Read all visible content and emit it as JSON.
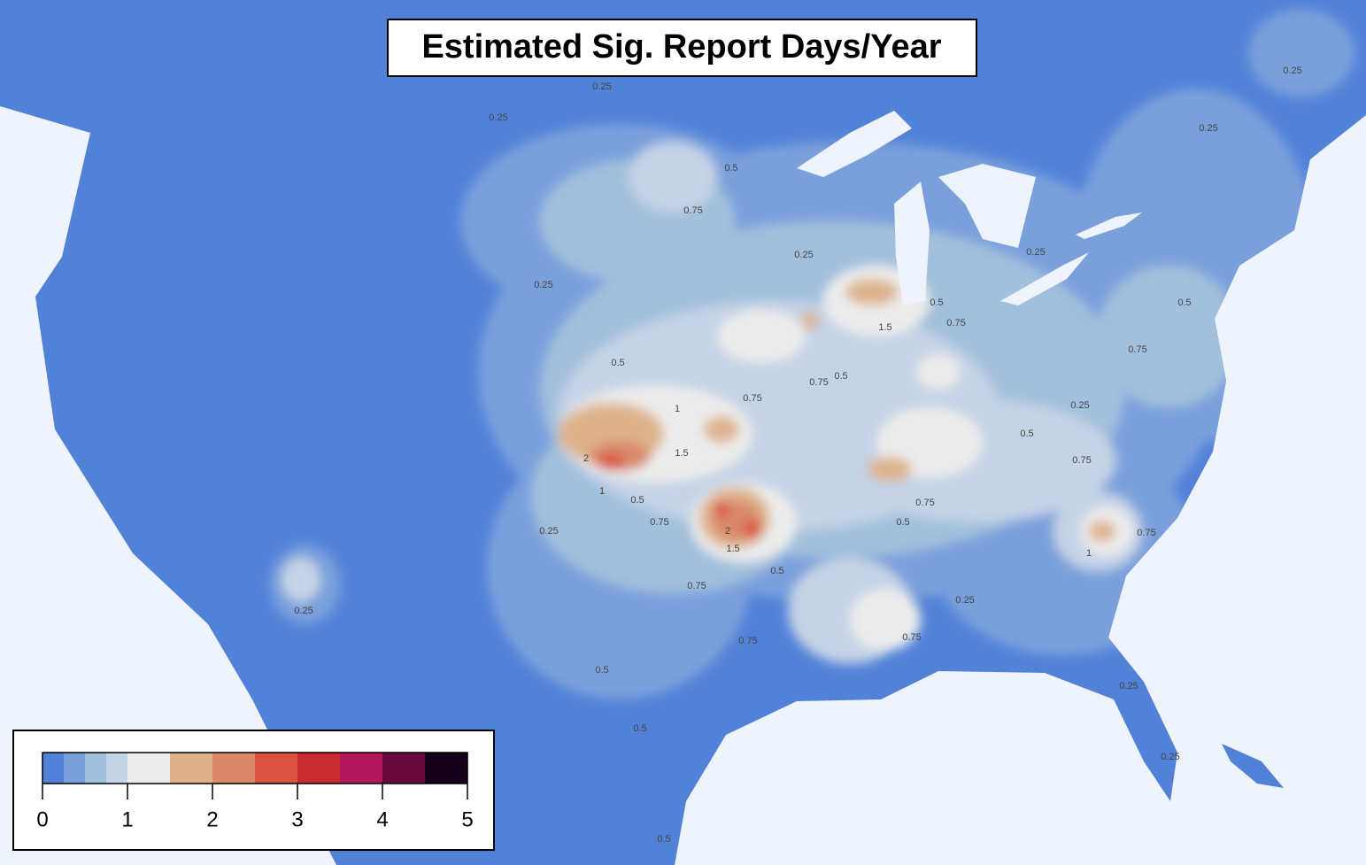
{
  "title": "Estimated Sig. Report Days/Year",
  "colorbar": {
    "boundaries": [
      0,
      0.25,
      0.5,
      0.75,
      1,
      1.5,
      2,
      2.5,
      3,
      3.5,
      4,
      4.5,
      5
    ],
    "colors": [
      "#5282d8",
      "#7aa0dc",
      "#a2c0dc",
      "#c5d3e6",
      "#ececec",
      "#deb38c",
      "#d9896a",
      "#d9523f",
      "#c82a32",
      "#b3195a",
      "#6a0a3c",
      "#15001a"
    ],
    "ticks": [
      0,
      1,
      2,
      3,
      4,
      5
    ]
  },
  "contour_labels": [
    0.25,
    0.25,
    0.5,
    0.75,
    0.25,
    0.25,
    0.25,
    0.5,
    0.5,
    0.75,
    1.5,
    0.75,
    0.5,
    0.75,
    1,
    1.5,
    2,
    1,
    0.5,
    0.75,
    0.25,
    2,
    1.5,
    0.5,
    0.75,
    0.5,
    0.5,
    0.25,
    0.75,
    0.5,
    0.75,
    0.75,
    1,
    0.75,
    0.25,
    0.75,
    0.5,
    0.5,
    0.75,
    0.25,
    0.25,
    0.25,
    0.25,
    0.25,
    0.5
  ]
}
